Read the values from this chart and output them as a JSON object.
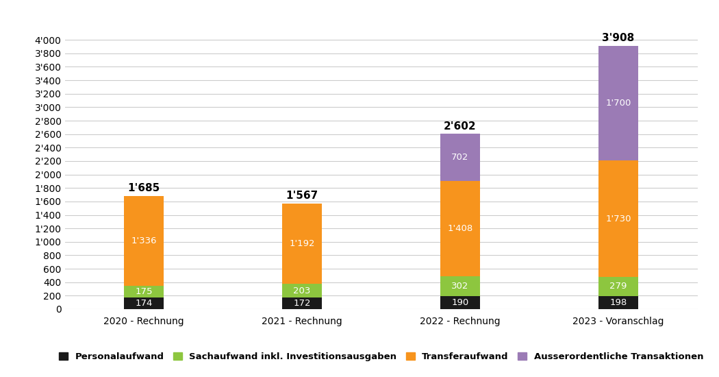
{
  "categories": [
    "2020 - Rechnung",
    "2021 - Rechnung",
    "2022 - Rechnung",
    "2023 - Voranschlag"
  ],
  "personalaufwand": [
    174,
    172,
    190,
    198
  ],
  "sachaufwand": [
    175,
    203,
    302,
    279
  ],
  "transferaufwand": [
    1336,
    1192,
    1408,
    1730
  ],
  "ausserordentlich": [
    0,
    0,
    702,
    1700
  ],
  "totals": [
    "1'685",
    "1'567",
    "2'602",
    "3'908"
  ],
  "colors": {
    "personalaufwand": "#1a1a1a",
    "sachaufwand": "#8dc63f",
    "transferaufwand": "#f7941d",
    "ausserordentlich": "#9b7bb5"
  },
  "legend_labels": [
    "Personalaufwand",
    "Sachaufwand inkl. Investitionsausgaben",
    "Transferaufwand",
    "Ausserordentliche Transaktionen"
  ],
  "ylim": [
    0,
    4200
  ],
  "yticks": [
    0,
    200,
    400,
    600,
    800,
    1000,
    1200,
    1400,
    1600,
    1800,
    2000,
    2200,
    2400,
    2600,
    2800,
    3000,
    3200,
    3400,
    3600,
    3800,
    4000
  ],
  "background_color": "#ffffff",
  "bar_width": 0.25
}
